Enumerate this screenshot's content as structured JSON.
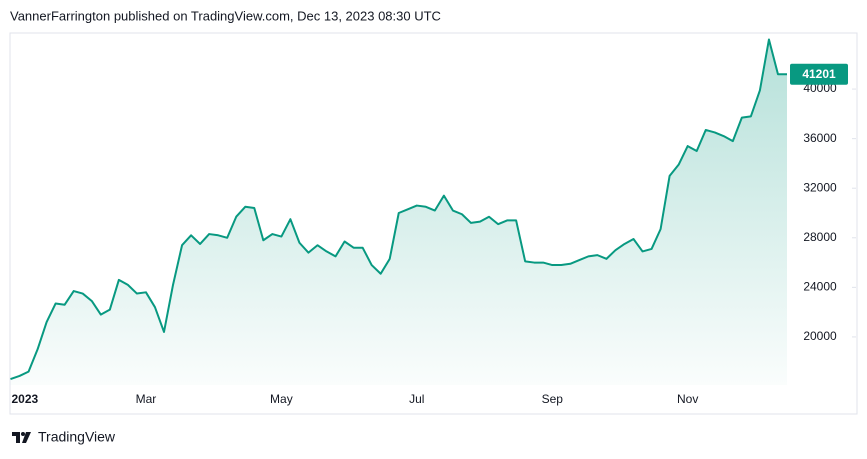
{
  "header": "VannerFarrington published on TradingView.com, Dec 13, 2023 08:30 UTC",
  "brand": "TradingView",
  "chart_data": {
    "type": "area",
    "categories": [
      "2023",
      null,
      null,
      null,
      null,
      null,
      null,
      null,
      null,
      null,
      null,
      null,
      null,
      null,
      null,
      "Mar",
      null,
      null,
      null,
      null,
      null,
      null,
      null,
      null,
      null,
      null,
      null,
      null,
      null,
      null,
      "May",
      null,
      null,
      null,
      null,
      null,
      null,
      null,
      null,
      null,
      null,
      null,
      null,
      null,
      null,
      "Jul",
      null,
      null,
      null,
      null,
      null,
      null,
      null,
      null,
      null,
      null,
      null,
      null,
      null,
      null,
      "Sep",
      null,
      null,
      null,
      null,
      null,
      null,
      null,
      null,
      null,
      null,
      null,
      null,
      null,
      null,
      "Nov",
      null,
      null,
      null,
      null,
      null,
      null,
      null,
      null,
      null,
      null,
      null
    ],
    "values": [
      16600,
      16850,
      17200,
      19000,
      21200,
      22700,
      22600,
      23700,
      23500,
      22900,
      21800,
      22200,
      24600,
      24200,
      23500,
      23600,
      22400,
      20400,
      24200,
      27400,
      28200,
      27500,
      28300,
      28200,
      28000,
      29700,
      30500,
      30400,
      27800,
      28300,
      28100,
      29500,
      27600,
      26800,
      27400,
      26900,
      26500,
      27700,
      27200,
      27200,
      25800,
      25100,
      26300,
      30000,
      30300,
      30600,
      30500,
      30200,
      31400,
      30200,
      29900,
      29200,
      29300,
      29700,
      29100,
      29400,
      29400,
      26100,
      26000,
      26000,
      25800,
      25800,
      25900,
      26200,
      26500,
      26600,
      26300,
      27000,
      27500,
      27900,
      26900,
      27100,
      28700,
      33000,
      33900,
      35400,
      35000,
      36700,
      36500,
      36200,
      35800,
      37700,
      37800,
      39900,
      44000,
      41200,
      41201
    ],
    "color": "#089981",
    "ylim": [
      16120,
      44525
    ],
    "yticks": [
      20000,
      24000,
      28000,
      32000,
      36000,
      40000
    ]
  }
}
